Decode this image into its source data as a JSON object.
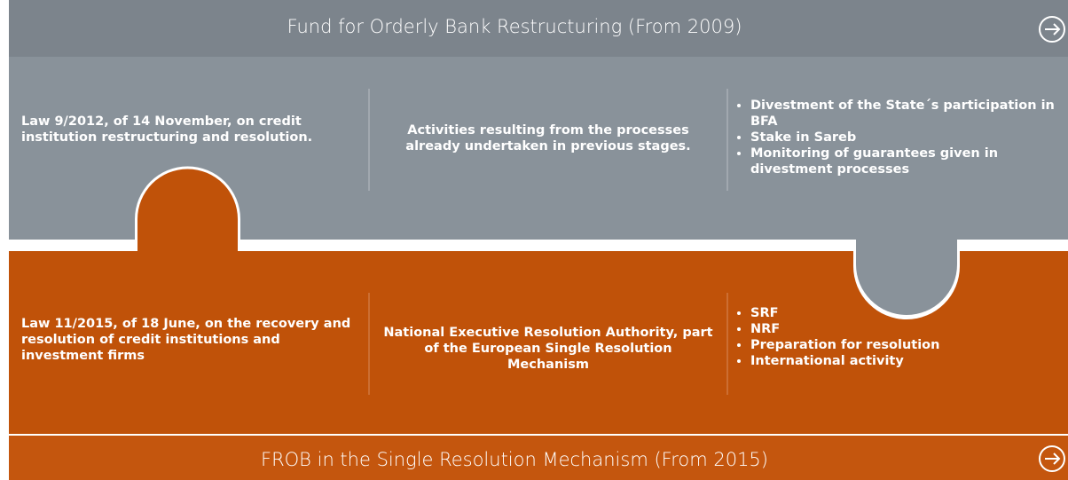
{
  "header": {
    "title": "Fund for Orderly Bank Restructuring (From 2009)"
  },
  "top": {
    "law": "Law 9/2012, of 14 November, on credit institution restructuring and resolution.",
    "activity": "Activities resulting from the processes already undertaken in previous stages.",
    "items": [
      "Divestment of the State´s participation in BFA",
      "Stake in Sareb",
      "Monitoring of guarantees given in divestment processes"
    ]
  },
  "bottom": {
    "law": "Law 11/2015, of 18 June, on the recovery and resolution of credit institutions and investment firms",
    "activity": "National Executive Resolution Authority, part of the European Single Resolution Mechanism",
    "items": [
      "SRF",
      "NRF",
      "Preparation for resolution",
      "International activity"
    ]
  },
  "footer": {
    "title": "FROB in the Single Resolution Mechanism (From 2015)"
  }
}
